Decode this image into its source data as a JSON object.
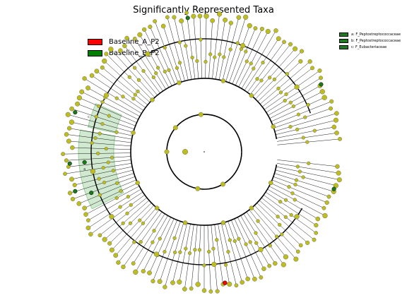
{
  "chart_data": {
    "type": "cladogram",
    "title": "Significantly Represented Taxa",
    "legend": [
      {
        "label": "Baseline_A_P2",
        "color": "#ff0000"
      },
      {
        "label": "Baseline_B_P2",
        "color": "#008000"
      }
    ],
    "clade_legend": [
      {
        "label": "a: F_Peptostreptococcaceae",
        "color": "#1f7a1f"
      },
      {
        "label": "b: F_Peptostreptococcaceae",
        "color": "#1f7a1f"
      },
      {
        "label": "c: F_Eubacteriaceae",
        "color": "#1f7a1f"
      }
    ],
    "clade_marks": [
      {
        "letter": "a",
        "angle": 188
      },
      {
        "letter": "b",
        "angle": 200
      },
      {
        "letter": "c",
        "angle": 163
      }
    ],
    "ring_radii": [
      53,
      104,
      160,
      195
    ],
    "node_color": "#bdbd1e",
    "highlight_node": {
      "color": "#ff0000",
      "angle": 78
    },
    "green_nodes": [
      {
        "ring": 4,
        "angle": 185
      },
      {
        "ring": 4,
        "angle": 197
      },
      {
        "ring": 4,
        "angle": 163
      },
      {
        "ring": 3,
        "angle": 200
      },
      {
        "ring": 3,
        "angle": 185
      },
      {
        "ring": 4,
        "angle": 97
      },
      {
        "ring": 4,
        "angle": 344
      },
      {
        "ring": 4,
        "angle": 30
      }
    ]
  }
}
